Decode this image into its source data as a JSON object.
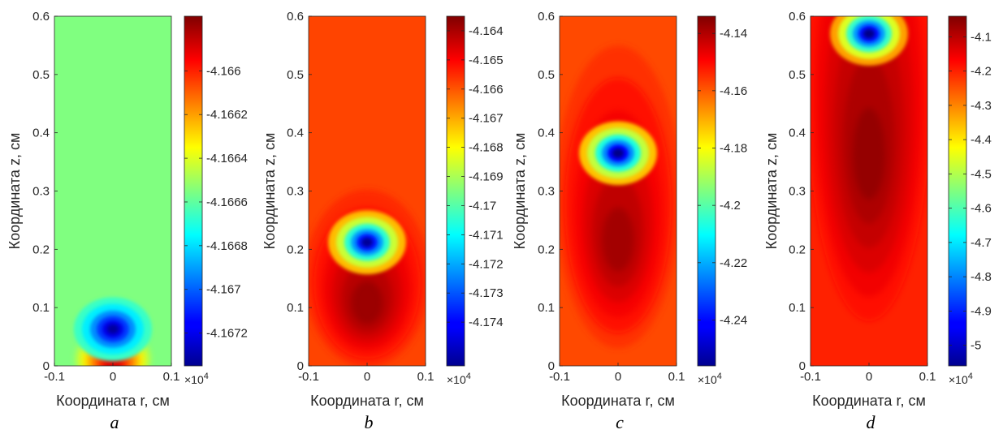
{
  "chart_data": [
    {
      "type": "heatmap",
      "panel_label": "a",
      "xlabel": "Координата r, см",
      "ylabel": "Координата z, см",
      "xlim": [
        -0.1,
        0.1
      ],
      "ylim": [
        0,
        0.6
      ],
      "xticks": [
        "-0.1",
        "0",
        "0.1"
      ],
      "yticks": [
        "0",
        "0.1",
        "0.2",
        "0.3",
        "0.4",
        "0.5",
        "0.6"
      ],
      "colorbar": {
        "min": -4.16735,
        "max": -4.16575,
        "ticks": [
          "-4.166",
          "-4.1662",
          "-4.1664",
          "-4.1666",
          "-4.1668",
          "-4.167",
          "-4.1672"
        ],
        "tick_values": [
          -4.166,
          -4.1662,
          -4.1664,
          -4.1666,
          -4.1668,
          -4.167,
          -4.1672
        ],
        "multiplier": "×10",
        "multiplier_exp": "4"
      },
      "background_value": -4.16655,
      "features": [
        {
          "kind": "minimum",
          "r": 0,
          "z": 0.063,
          "value": -4.1673
        },
        {
          "kind": "maximum",
          "r": 0,
          "z": 0.012,
          "value": -4.1659
        }
      ]
    },
    {
      "type": "heatmap",
      "panel_label": "b",
      "xlabel": "Координата r, см",
      "ylabel": "Координата z, см",
      "xlim": [
        -0.1,
        0.1
      ],
      "ylim": [
        0,
        0.6
      ],
      "xticks": [
        "-0.1",
        "0",
        "0.1"
      ],
      "yticks": [
        "0",
        "0.1",
        "0.2",
        "0.3",
        "0.4",
        "0.5",
        "0.6"
      ],
      "colorbar": {
        "min": -4.1755,
        "max": -4.1635,
        "ticks": [
          "-4.164",
          "-4.165",
          "-4.166",
          "-4.167",
          "-4.168",
          "-4.169",
          "-4.17",
          "-4.171",
          "-4.172",
          "-4.173",
          "-4.174"
        ],
        "tick_values": [
          -4.164,
          -4.165,
          -4.166,
          -4.167,
          -4.168,
          -4.169,
          -4.17,
          -4.171,
          -4.172,
          -4.173,
          -4.174
        ],
        "multiplier": "×10",
        "multiplier_exp": "4"
      },
      "background_value": -4.1658,
      "features": [
        {
          "kind": "minimum",
          "r": 0,
          "z": 0.212,
          "value": -4.1752
        },
        {
          "kind": "maximum",
          "r": 0,
          "z": 0.15,
          "value": -4.1638
        }
      ]
    },
    {
      "type": "heatmap",
      "panel_label": "c",
      "xlabel": "Координата r, см",
      "ylabel": "Координата z, см",
      "xlim": [
        -0.1,
        0.1
      ],
      "ylim": [
        0,
        0.6
      ],
      "xticks": [
        "-0.1",
        "0",
        "0.1"
      ],
      "yticks": [
        "0",
        "0.1",
        "0.2",
        "0.3",
        "0.4",
        "0.5",
        "0.6"
      ],
      "colorbar": {
        "min": -4.256,
        "max": -4.134,
        "ticks": [
          "-4.14",
          "-4.16",
          "-4.18",
          "-4.2",
          "-4.22",
          "-4.24"
        ],
        "tick_values": [
          -4.14,
          -4.16,
          -4.18,
          -4.2,
          -4.22,
          -4.24
        ],
        "multiplier": "×10",
        "multiplier_exp": "4"
      },
      "background_value": -4.158,
      "features": [
        {
          "kind": "minimum",
          "r": 0,
          "z": 0.365,
          "value": -4.255
        },
        {
          "kind": "maximum",
          "r": 0,
          "z": 0.29,
          "value": -4.138
        }
      ]
    },
    {
      "type": "heatmap",
      "panel_label": "d",
      "xlabel": "Координата r, см",
      "ylabel": "Координата z, см",
      "xlim": [
        -0.1,
        0.1
      ],
      "ylim": [
        0,
        0.6
      ],
      "xticks": [
        "-0.1",
        "0",
        "0.1"
      ],
      "yticks": [
        "0",
        "0.1",
        "0.2",
        "0.3",
        "0.4",
        "0.5",
        "0.6"
      ],
      "colorbar": {
        "min": -5.06,
        "max": -4.04,
        "ticks": [
          "-4.1",
          "-4.2",
          "-4.3",
          "-4.4",
          "-4.5",
          "-4.6",
          "-4.7",
          "-4.8",
          "-4.9",
          "-5"
        ],
        "tick_values": [
          -4.1,
          -4.2,
          -4.3,
          -4.4,
          -4.5,
          -4.6,
          -4.7,
          -4.8,
          -4.9,
          -5
        ],
        "multiplier": "×10",
        "multiplier_exp": "4"
      },
      "background_value": -4.2,
      "features": [
        {
          "kind": "minimum",
          "r": 0,
          "z": 0.57,
          "value": -5.05
        },
        {
          "kind": "maximum",
          "r": 0,
          "z": 0.48,
          "value": -4.06
        }
      ]
    }
  ]
}
